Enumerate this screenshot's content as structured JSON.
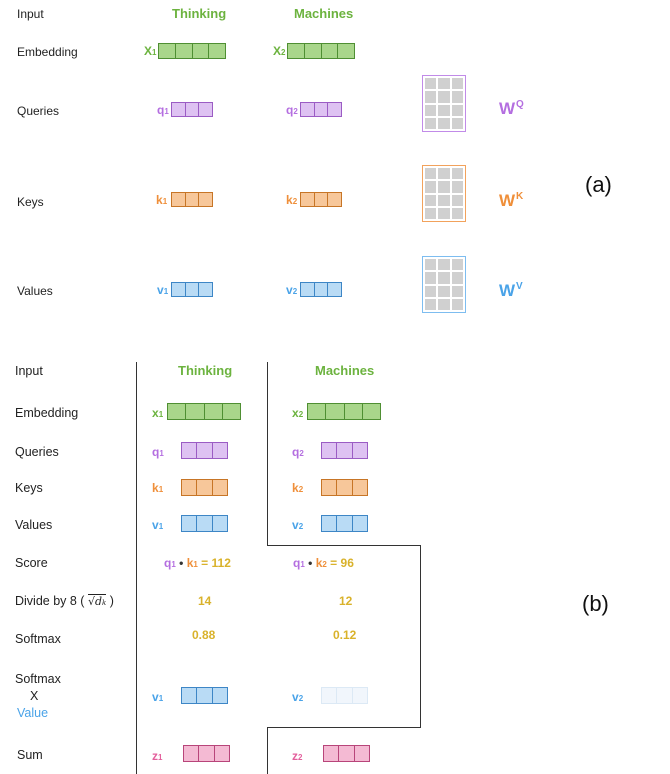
{
  "colors": {
    "green": "#6cb33f",
    "purple": "#b46ee0",
    "orange": "#ef8f3a",
    "blue": "#4aa3e8",
    "pink": "#e35f9c",
    "gold": "#d9b22b"
  },
  "panel_a": {
    "label": "(a)",
    "rows": {
      "input": "Input",
      "embedding": "Embedding",
      "queries": "Queries",
      "keys": "Keys",
      "values": "Values"
    },
    "words": [
      "Thinking",
      "Machines"
    ],
    "x1": "X",
    "x2": "X",
    "q1": "q",
    "q2": "q",
    "k1": "k",
    "k2": "k",
    "v1": "v",
    "v2": "v",
    "sub1": "1",
    "sub2": "2",
    "wq": {
      "base": "W",
      "sup": "Q"
    },
    "wk": {
      "base": "W",
      "sup": "K"
    },
    "wv": {
      "base": "W",
      "sup": "V"
    }
  },
  "panel_b": {
    "label": "(b)",
    "rows": {
      "input": "Input",
      "embedding": "Embedding",
      "queries": "Queries",
      "keys": "Keys",
      "values": "Values",
      "score": "Score",
      "divide": "Divide by 8 (",
      "divide_sqrt": "√d",
      "divide_sub": "k",
      "divide_end": ")",
      "softmax": "Softmax",
      "softmax_x_1": "Softmax",
      "softmax_x_2": "X",
      "softmax_x_3": "Value",
      "sum": "Sum"
    },
    "words": [
      "Thinking",
      "Machines"
    ],
    "x": "x",
    "q": "q",
    "k": "k",
    "v": "v",
    "z": "z",
    "sub1": "1",
    "sub2": "2",
    "dot": "•",
    "eq": "=",
    "score1": "112",
    "score2": "96",
    "div1": "14",
    "div2": "12",
    "soft1": "0.88",
    "soft2": "0.12"
  }
}
